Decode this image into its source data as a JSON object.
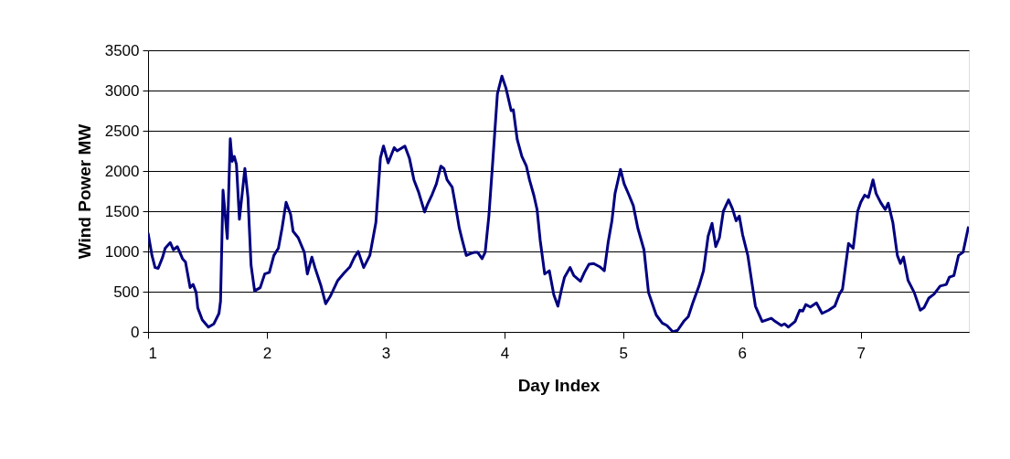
{
  "chart_data": {
    "type": "line",
    "xlabel": "Day Index",
    "ylabel": "Wind Power MW",
    "x": [
      1.0,
      1.033,
      1.059,
      1.085,
      1.123,
      1.144,
      1.187,
      1.213,
      1.246,
      1.29,
      1.315,
      1.354,
      1.379,
      1.405,
      1.418,
      1.456,
      1.508,
      1.554,
      1.597,
      1.61,
      1.631,
      1.667,
      1.692,
      1.708,
      1.726,
      1.744,
      1.769,
      1.815,
      1.841,
      1.867,
      1.897,
      1.944,
      1.982,
      2.021,
      2.059,
      2.097,
      2.128,
      2.162,
      2.2,
      2.221,
      2.264,
      2.315,
      2.341,
      2.379,
      2.405,
      2.456,
      2.495,
      2.533,
      2.597,
      2.649,
      2.7,
      2.738,
      2.769,
      2.815,
      2.867,
      2.918,
      2.956,
      2.982,
      3.021,
      3.072,
      3.097,
      3.162,
      3.2,
      3.238,
      3.277,
      3.328,
      3.354,
      3.392,
      3.427,
      3.465,
      3.491,
      3.517,
      3.56,
      3.581,
      3.62,
      3.645,
      3.679,
      3.71,
      3.748,
      3.774,
      3.812,
      3.838,
      3.869,
      3.902,
      3.941,
      3.979,
      4.013,
      4.057,
      4.075,
      4.108,
      4.147,
      4.185,
      4.211,
      4.249,
      4.275,
      4.301,
      4.339,
      4.378,
      4.416,
      4.45,
      4.481,
      4.506,
      4.553,
      4.584,
      4.64,
      4.674,
      4.712,
      4.751,
      4.802,
      4.841,
      4.874,
      4.905,
      4.931,
      4.977,
      5.008,
      5.046,
      5.085,
      5.123,
      5.175,
      5.213,
      5.278,
      5.329,
      5.368,
      5.419,
      5.458,
      5.509,
      5.548,
      5.586,
      5.638,
      5.676,
      5.715,
      5.748,
      5.779,
      5.81,
      5.843,
      5.887,
      5.92,
      5.951,
      5.977,
      6.005,
      6.049,
      6.113,
      6.17,
      6.247,
      6.28,
      6.332,
      6.357,
      6.391,
      6.447,
      6.486,
      6.512,
      6.537,
      6.576,
      6.627,
      6.674,
      6.73,
      6.781,
      6.82,
      6.846,
      6.897,
      6.936,
      6.974,
      7.0,
      7.033,
      7.064,
      7.103,
      7.129,
      7.167,
      7.206,
      7.231,
      7.27,
      7.308,
      7.334,
      7.36,
      7.398,
      7.45,
      7.501,
      7.532,
      7.573,
      7.617,
      7.668,
      7.72,
      7.746,
      7.784,
      7.823,
      7.861,
      7.907
    ],
    "series": [
      {
        "color": "#000080",
        "values": [
          1230,
          950,
          800,
          790,
          930,
          1040,
          1110,
          1020,
          1060,
          910,
          870,
          550,
          590,
          490,
          300,
          150,
          60,
          100,
          230,
          380,
          1760,
          1160,
          2400,
          2120,
          2180,
          2080,
          1400,
          2030,
          1670,
          830,
          510,
          550,
          720,
          740,
          950,
          1040,
          1290,
          1610,
          1460,
          1250,
          1170,
          990,
          720,
          930,
          800,
          570,
          350,
          440,
          640,
          730,
          810,
          930,
          1000,
          800,
          950,
          1360,
          2160,
          2310,
          2100,
          2290,
          2250,
          2310,
          2160,
          1890,
          1740,
          1490,
          1590,
          1710,
          1840,
          2060,
          2030,
          1890,
          1800,
          1630,
          1290,
          1140,
          950,
          970,
          990,
          990,
          910,
          990,
          1440,
          2120,
          2960,
          3180,
          3030,
          2750,
          2760,
          2390,
          2180,
          2060,
          1890,
          1690,
          1520,
          1140,
          720,
          760,
          460,
          320,
          530,
          680,
          800,
          700,
          630,
          740,
          840,
          850,
          810,
          760,
          1120,
          1380,
          1720,
          2020,
          1840,
          1710,
          1570,
          1290,
          1020,
          490,
          210,
          110,
          80,
          0,
          20,
          130,
          190,
          360,
          570,
          760,
          1190,
          1350,
          1060,
          1170,
          1500,
          1640,
          1530,
          1380,
          1440,
          1210,
          950,
          320,
          130,
          170,
          130,
          80,
          100,
          60,
          130,
          270,
          260,
          340,
          310,
          360,
          230,
          270,
          320,
          470,
          530,
          1100,
          1040,
          1500,
          1610,
          1700,
          1670,
          1890,
          1720,
          1610,
          1520,
          1600,
          1360,
          950,
          850,
          930,
          640,
          490,
          270,
          300,
          420,
          470,
          570,
          590,
          680,
          700,
          950,
          990,
          1310
        ]
      }
    ],
    "xlim": [
      1,
      7.91
    ],
    "ylim": [
      0,
      3500
    ],
    "xticks": [
      1,
      2,
      3,
      4,
      5,
      6,
      7
    ],
    "yticks": [
      0,
      500,
      1000,
      1500,
      2000,
      2500,
      3000,
      3500
    ],
    "grid": "y",
    "line_style": "solid"
  }
}
